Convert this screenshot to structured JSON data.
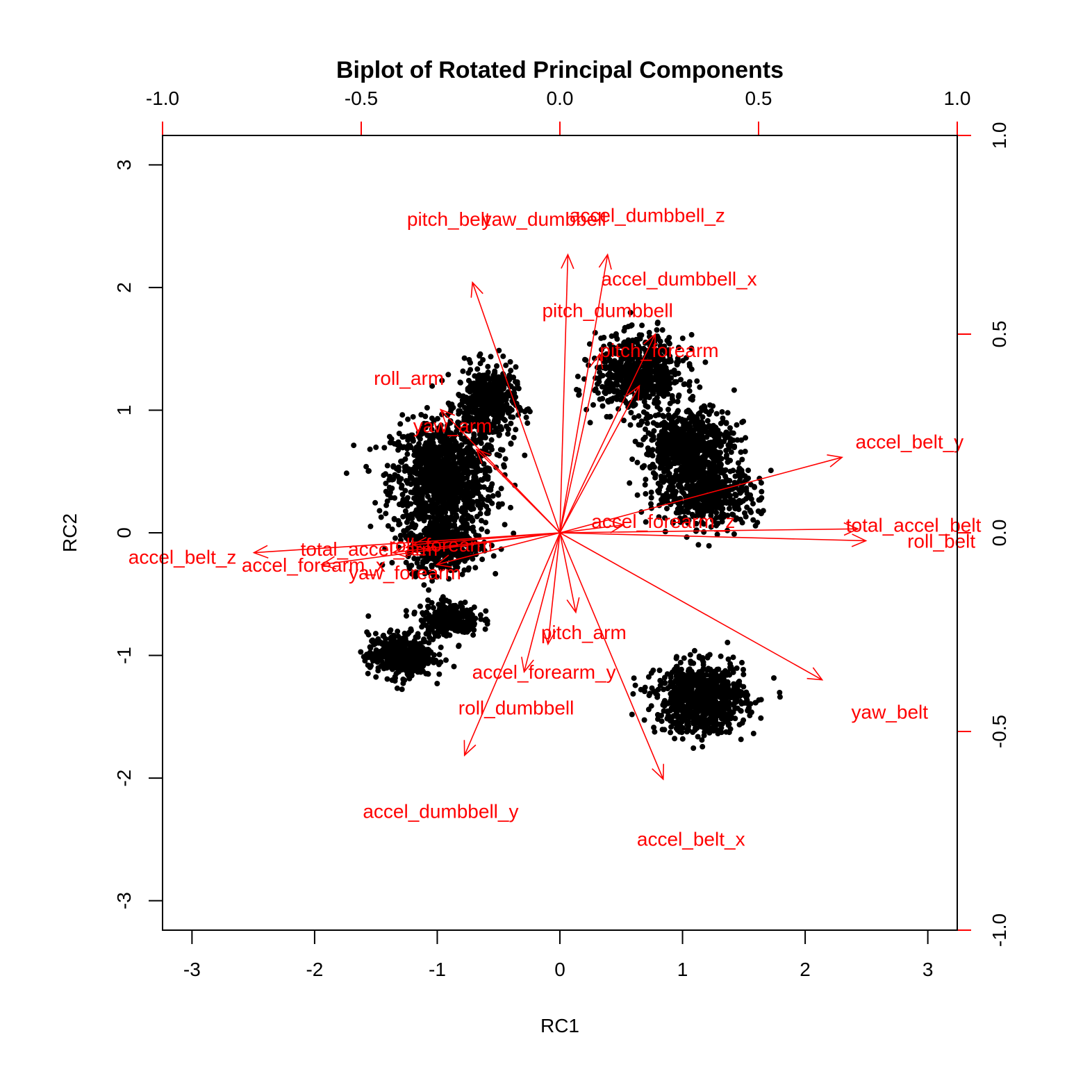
{
  "chart_data": {
    "type": "scatter",
    "subtype": "biplot",
    "title": "Biplot of Rotated Principal Components",
    "xlabel": "RC1",
    "ylabel": "RC2",
    "xlim": [
      -3.24,
      3.24
    ],
    "ylim": [
      -3.24,
      3.24
    ],
    "xticks": [
      "-3",
      "-2",
      "-1",
      "0",
      "1",
      "2",
      "3"
    ],
    "yticks": [
      "-3",
      "-2",
      "-1",
      "0",
      "1",
      "2",
      "3"
    ],
    "loading_axis_lim": [
      -1.0,
      1.0
    ],
    "top_ticks": [
      "-1.0",
      "-0.5",
      "0.0",
      "0.5",
      "1.0"
    ],
    "right_ticks": [
      "-1.0",
      "-0.5",
      "0.0",
      "0.5",
      "1.0"
    ],
    "colors": {
      "points": "#000000",
      "arrows": "#ff0000",
      "axes": "#000000"
    },
    "score_clusters": [
      {
        "center": [
          -0.95,
          0.45
        ],
        "spread": [
          0.35,
          0.38
        ],
        "n": 1100
      },
      {
        "center": [
          -0.6,
          1.05
        ],
        "spread": [
          0.2,
          0.25
        ],
        "n": 500
      },
      {
        "center": [
          -0.95,
          -0.1
        ],
        "spread": [
          0.25,
          0.18
        ],
        "n": 400
      },
      {
        "center": [
          -1.3,
          -1.0
        ],
        "spread": [
          0.22,
          0.15
        ],
        "n": 450
      },
      {
        "center": [
          -0.9,
          -0.7
        ],
        "spread": [
          0.2,
          0.12
        ],
        "n": 250
      },
      {
        "center": [
          0.65,
          1.3
        ],
        "spread": [
          0.3,
          0.25
        ],
        "n": 700
      },
      {
        "center": [
          1.05,
          0.7
        ],
        "spread": [
          0.3,
          0.25
        ],
        "n": 700
      },
      {
        "center": [
          1.2,
          0.3
        ],
        "spread": [
          0.35,
          0.2
        ],
        "n": 500
      },
      {
        "center": [
          1.15,
          -1.35
        ],
        "spread": [
          0.3,
          0.23
        ],
        "n": 900
      }
    ],
    "loadings": [
      {
        "name": "yaw_dumbbell",
        "x": 0.02,
        "y": 0.7,
        "label_x": -0.04,
        "label_y": 0.79
      },
      {
        "name": "accel_dumbbell_z",
        "x": 0.12,
        "y": 0.7,
        "label_x": 0.22,
        "label_y": 0.8
      },
      {
        "name": "pitch_belt",
        "x": -0.22,
        "y": 0.63,
        "label_x": -0.28,
        "label_y": 0.79
      },
      {
        "name": "accel_dumbbell_x",
        "x": 0.24,
        "y": 0.5,
        "label_x": 0.3,
        "label_y": 0.64
      },
      {
        "name": "pitch_dumbbell",
        "x": 0.1,
        "y": 0.45,
        "label_x": 0.12,
        "label_y": 0.56
      },
      {
        "name": "pitch_forearm",
        "x": 0.2,
        "y": 0.37,
        "label_x": 0.25,
        "label_y": 0.46
      },
      {
        "name": "roll_arm",
        "x": -0.3,
        "y": 0.31,
        "label_x": -0.38,
        "label_y": 0.39
      },
      {
        "name": "yaw_arm",
        "x": -0.21,
        "y": 0.21,
        "label_x": -0.27,
        "label_y": 0.27
      },
      {
        "name": "accel_belt_y",
        "x": 0.71,
        "y": 0.19,
        "label_x": 0.88,
        "label_y": 0.23
      },
      {
        "name": "accel_forearm_z",
        "x": 0.16,
        "y": 0.02,
        "label_x": 0.26,
        "label_y": 0.03
      },
      {
        "name": "total_accel_belt",
        "x": 0.75,
        "y": 0.01,
        "label_x": 0.89,
        "label_y": 0.02
      },
      {
        "name": "roll_belt",
        "x": 0.77,
        "y": -0.02,
        "label_x": 0.96,
        "label_y": -0.02
      },
      {
        "name": "accel_belt_z",
        "x": -0.77,
        "y": -0.05,
        "label_x": -0.95,
        "label_y": -0.06
      },
      {
        "name": "accel_forearm_x",
        "x": -0.6,
        "y": -0.08,
        "label_x": -0.62,
        "label_y": -0.08
      },
      {
        "name": "total_accel_arm",
        "x": -0.42,
        "y": -0.05,
        "label_x": -0.48,
        "label_y": -0.04
      },
      {
        "name": "roll_forearm",
        "x": -0.37,
        "y": -0.03,
        "label_x": -0.3,
        "label_y": -0.03
      },
      {
        "name": "yaw_forearm",
        "x": -0.31,
        "y": -0.08,
        "label_x": -0.39,
        "label_y": -0.1
      },
      {
        "name": "pitch_arm",
        "x": 0.04,
        "y": -0.2,
        "label_x": 0.06,
        "label_y": -0.25
      },
      {
        "name": "accel_forearm_y",
        "x": -0.03,
        "y": -0.28,
        "label_x": -0.04,
        "label_y": -0.35
      },
      {
        "name": "roll_dumbbell",
        "x": -0.09,
        "y": -0.35,
        "label_x": -0.11,
        "label_y": -0.44
      },
      {
        "name": "yaw_belt",
        "x": 0.66,
        "y": -0.37,
        "label_x": 0.83,
        "label_y": -0.45
      },
      {
        "name": "accel_dumbbell_y",
        "x": -0.24,
        "y": -0.56,
        "label_x": -0.3,
        "label_y": -0.7
      },
      {
        "name": "accel_belt_x",
        "x": 0.26,
        "y": -0.62,
        "label_x": 0.33,
        "label_y": -0.77
      }
    ]
  }
}
